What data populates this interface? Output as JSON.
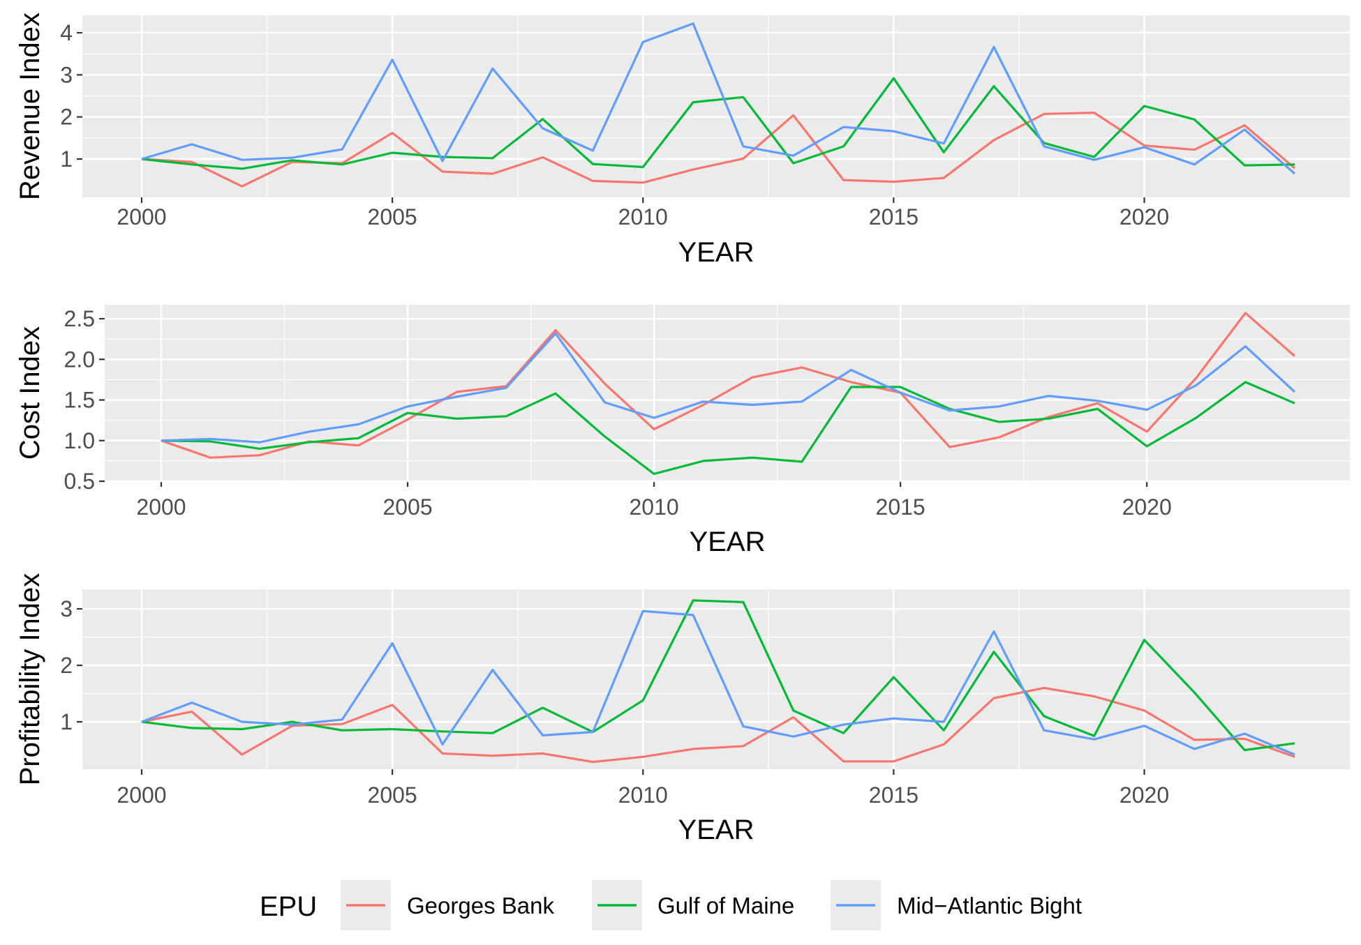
{
  "legend": {
    "title": "EPU",
    "entries": [
      {
        "label": "Georges Bank",
        "color": "#F8766D"
      },
      {
        "label": "Gulf of Maine",
        "color": "#00BA38"
      },
      {
        "label": "Mid−Atlantic Bight",
        "color": "#619CFF"
      }
    ]
  },
  "chart_data": [
    {
      "type": "line",
      "ylabel": "Revenue Index",
      "xlabel": "YEAR",
      "xlim": [
        1999,
        2024
      ],
      "ylim": [
        0.2,
        4.4
      ],
      "x_ticks": [
        2000,
        2005,
        2010,
        2015,
        2020
      ],
      "y_ticks": [
        1,
        2,
        3,
        4
      ],
      "y_tick_labels": [
        "1",
        "2",
        "3",
        "4"
      ],
      "grid": true,
      "x": [
        2000,
        2001,
        2002,
        2003,
        2004,
        2005,
        2006,
        2007,
        2008,
        2009,
        2010,
        2011,
        2012,
        2013,
        2014,
        2015,
        2016,
        2017,
        2018,
        2019,
        2020,
        2021,
        2022,
        2023
      ],
      "series": [
        {
          "name": "Georges Bank",
          "color": "#F8766D",
          "values": [
            1.0,
            0.93,
            0.35,
            0.93,
            0.9,
            1.62,
            0.7,
            0.65,
            1.04,
            0.48,
            0.44,
            0.75,
            1.01,
            2.04,
            0.5,
            0.46,
            0.55,
            1.45,
            2.07,
            2.1,
            1.32,
            1.22,
            1.8,
            0.78
          ]
        },
        {
          "name": "Gulf of Maine",
          "color": "#00BA38",
          "values": [
            1.0,
            0.87,
            0.77,
            0.97,
            0.87,
            1.15,
            1.05,
            1.02,
            1.95,
            0.88,
            0.81,
            2.35,
            2.47,
            0.9,
            1.3,
            2.92,
            1.16,
            2.73,
            1.38,
            1.05,
            2.26,
            1.94,
            0.85,
            0.87
          ]
        },
        {
          "name": "Mid−Atlantic Bight",
          "color": "#619CFF",
          "values": [
            1.0,
            1.35,
            0.98,
            1.03,
            1.23,
            3.36,
            0.95,
            3.15,
            1.73,
            1.2,
            3.78,
            4.22,
            1.3,
            1.08,
            1.76,
            1.66,
            1.37,
            3.66,
            1.3,
            0.98,
            1.28,
            0.87,
            1.7,
            0.65
          ]
        }
      ]
    },
    {
      "type": "line",
      "ylabel": "Cost Index",
      "xlabel": "YEAR",
      "xlim": [
        1999,
        2024
      ],
      "ylim": [
        0.5,
        2.64
      ],
      "x_ticks": [
        2000,
        2005,
        2010,
        2015,
        2020
      ],
      "y_ticks": [
        0.5,
        1.0,
        1.5,
        2.0,
        2.5
      ],
      "y_tick_labels": [
        "0.5",
        "1.0",
        "1.5",
        "2.0",
        "2.5"
      ],
      "grid": true,
      "x": [
        2000,
        2001,
        2002,
        2003,
        2004,
        2005,
        2006,
        2007,
        2008,
        2009,
        2010,
        2011,
        2012,
        2013,
        2014,
        2015,
        2016,
        2017,
        2018,
        2019,
        2020,
        2021,
        2022,
        2023
      ],
      "series": [
        {
          "name": "Georges Bank",
          "color": "#F8766D",
          "values": [
            1.0,
            0.79,
            0.82,
            0.99,
            0.94,
            1.26,
            1.6,
            1.67,
            2.36,
            1.7,
            1.14,
            1.44,
            1.78,
            1.9,
            1.72,
            1.59,
            0.92,
            1.04,
            1.29,
            1.46,
            1.11,
            1.77,
            2.57,
            2.04
          ]
        },
        {
          "name": "Gulf of Maine",
          "color": "#00BA38",
          "values": [
            1.0,
            0.99,
            0.9,
            0.98,
            1.03,
            1.34,
            1.27,
            1.3,
            1.58,
            1.05,
            0.59,
            0.75,
            0.79,
            0.74,
            1.66,
            1.66,
            1.39,
            1.23,
            1.27,
            1.39,
            0.93,
            1.28,
            1.72,
            1.46
          ]
        },
        {
          "name": "Mid−Atlantic Bight",
          "color": "#619CFF",
          "values": [
            1.0,
            1.02,
            0.98,
            1.11,
            1.2,
            1.42,
            1.54,
            1.65,
            2.32,
            1.47,
            1.28,
            1.48,
            1.44,
            1.48,
            1.87,
            1.59,
            1.37,
            1.42,
            1.55,
            1.49,
            1.38,
            1.68,
            2.16,
            1.6
          ]
        }
      ]
    },
    {
      "type": "line",
      "ylabel": "Profitability Index",
      "xlabel": "YEAR",
      "xlim": [
        1999,
        2024
      ],
      "ylim": [
        0.15,
        3.3
      ],
      "x_ticks": [
        2000,
        2005,
        2010,
        2015,
        2020
      ],
      "y_ticks": [
        1,
        2,
        3
      ],
      "y_tick_labels": [
        "1",
        "2",
        "3"
      ],
      "grid": true,
      "x": [
        2000,
        2001,
        2002,
        2003,
        2004,
        2005,
        2006,
        2007,
        2008,
        2009,
        2010,
        2011,
        2012,
        2013,
        2014,
        2015,
        2016,
        2017,
        2018,
        2019,
        2020,
        2021,
        2022,
        2023
      ],
      "series": [
        {
          "name": "Georges Bank",
          "color": "#F8766D",
          "values": [
            1.0,
            1.18,
            0.42,
            0.93,
            0.96,
            1.3,
            0.44,
            0.4,
            0.44,
            0.29,
            0.38,
            0.52,
            0.57,
            1.08,
            0.3,
            0.3,
            0.6,
            1.42,
            1.6,
            1.45,
            1.2,
            0.68,
            0.7,
            0.38
          ]
        },
        {
          "name": "Gulf of Maine",
          "color": "#00BA38",
          "values": [
            1.0,
            0.89,
            0.87,
            1.0,
            0.85,
            0.87,
            0.83,
            0.8,
            1.25,
            0.82,
            1.38,
            3.15,
            3.12,
            1.2,
            0.8,
            1.79,
            0.85,
            2.24,
            1.1,
            0.75,
            2.45,
            1.52,
            0.5,
            0.62
          ]
        },
        {
          "name": "Mid−Atlantic Bight",
          "color": "#619CFF",
          "values": [
            1.0,
            1.34,
            1.0,
            0.95,
            1.04,
            2.39,
            0.6,
            1.92,
            0.76,
            0.82,
            2.96,
            2.89,
            0.92,
            0.74,
            0.95,
            1.06,
            1.0,
            2.6,
            0.85,
            0.69,
            0.93,
            0.52,
            0.79,
            0.42
          ]
        }
      ]
    }
  ]
}
